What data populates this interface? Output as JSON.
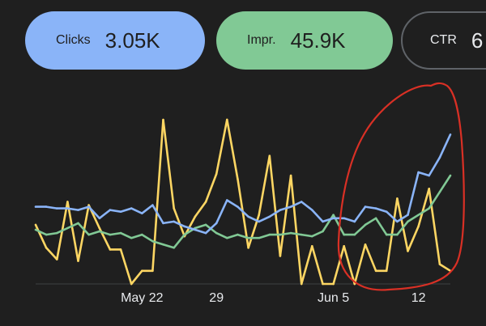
{
  "metrics": {
    "clicks": {
      "label": "Clicks",
      "value": "3.05K",
      "color": "#8ab4f8"
    },
    "impressions": {
      "label": "Impr.",
      "value": "45.9K",
      "color": "#81c995"
    },
    "ctr": {
      "label": "CTR",
      "value": "6"
    }
  },
  "annotation_color": "#d93025",
  "chart_data": {
    "type": "line",
    "x_ticks": [
      "May 22",
      "29",
      "Jun 5",
      "12"
    ],
    "grid": false,
    "series": [
      {
        "color": "#8ab4f8",
        "values": [
          47,
          47,
          46,
          46,
          45,
          47,
          40,
          45,
          44,
          46,
          43,
          48,
          37,
          38,
          35,
          33,
          31,
          37,
          51,
          47,
          41,
          38,
          41,
          45,
          47,
          50,
          45,
          38,
          40,
          40,
          38,
          47,
          46,
          44,
          38,
          42,
          68,
          66,
          77,
          91
        ]
      },
      {
        "color": "#81c995",
        "values": [
          33,
          30,
          31,
          34,
          37,
          30,
          32,
          30,
          31,
          28,
          30,
          26,
          24,
          22,
          30,
          34,
          36,
          31,
          28,
          30,
          28,
          28,
          30,
          30,
          31,
          30,
          29,
          32,
          42,
          30,
          30,
          36,
          40,
          30,
          30,
          38,
          42,
          46,
          56,
          66
        ]
      },
      {
        "color": "#fdd663",
        "values": [
          36,
          22,
          15,
          50,
          14,
          48,
          34,
          21,
          21,
          0,
          8,
          8,
          100,
          46,
          29,
          41,
          50,
          67,
          100,
          64,
          22,
          42,
          78,
          17,
          66,
          0,
          23,
          0,
          0,
          23,
          0,
          24,
          8,
          8,
          52,
          20,
          35,
          58,
          12,
          8
        ]
      }
    ]
  }
}
